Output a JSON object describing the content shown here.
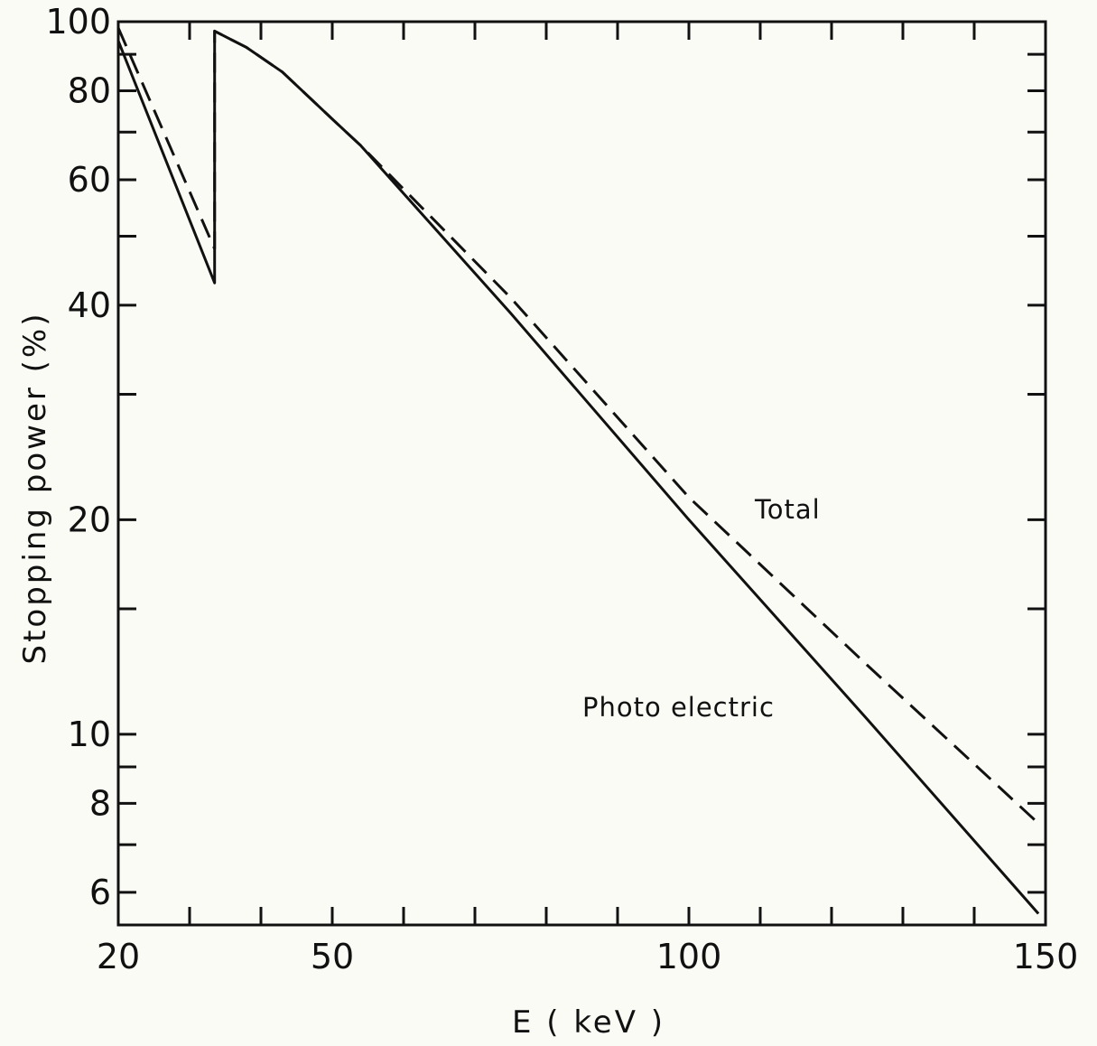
{
  "chart_data": {
    "type": "line",
    "xlabel": "E ( keV )",
    "ylabel": "Stopping power (%)",
    "x_scale": "linear",
    "y_scale": "log",
    "xlim": [
      20,
      150
    ],
    "ylim": [
      5.4,
      100
    ],
    "x_major_ticks": [
      20,
      50,
      100,
      150
    ],
    "x_minor_ticks": [
      30,
      40,
      60,
      70,
      80,
      90,
      110,
      120,
      130,
      140
    ],
    "y_labeled_ticks": [
      6,
      8,
      10,
      20,
      40,
      60,
      80,
      100
    ],
    "y_unlabeled_ticks": [
      7,
      9,
      15,
      30,
      50,
      70,
      90
    ],
    "grid": false,
    "legend": "none",
    "annotations": [
      "Total",
      "Photo electric"
    ],
    "series": [
      {
        "label": "Total",
        "style": "dashed",
        "points": [
          [
            20,
            98
          ],
          [
            33.5,
            48
          ],
          [
            33.5,
            97
          ],
          [
            38,
            92
          ],
          [
            43,
            85
          ],
          [
            50,
            73
          ],
          [
            54,
            67
          ],
          [
            75,
            41
          ],
          [
            100,
            21.5
          ],
          [
            125,
            12.5
          ],
          [
            149,
            7.5
          ]
        ]
      },
      {
        "label": "Photo electric",
        "style": "solid",
        "points": [
          [
            20,
            94
          ],
          [
            33.5,
            43
          ],
          [
            33.5,
            97
          ],
          [
            38,
            92
          ],
          [
            43,
            85
          ],
          [
            50,
            73
          ],
          [
            54,
            67
          ],
          [
            75,
            39
          ],
          [
            100,
            20
          ],
          [
            125,
            10.5
          ],
          [
            149,
            5.6
          ]
        ]
      }
    ]
  }
}
